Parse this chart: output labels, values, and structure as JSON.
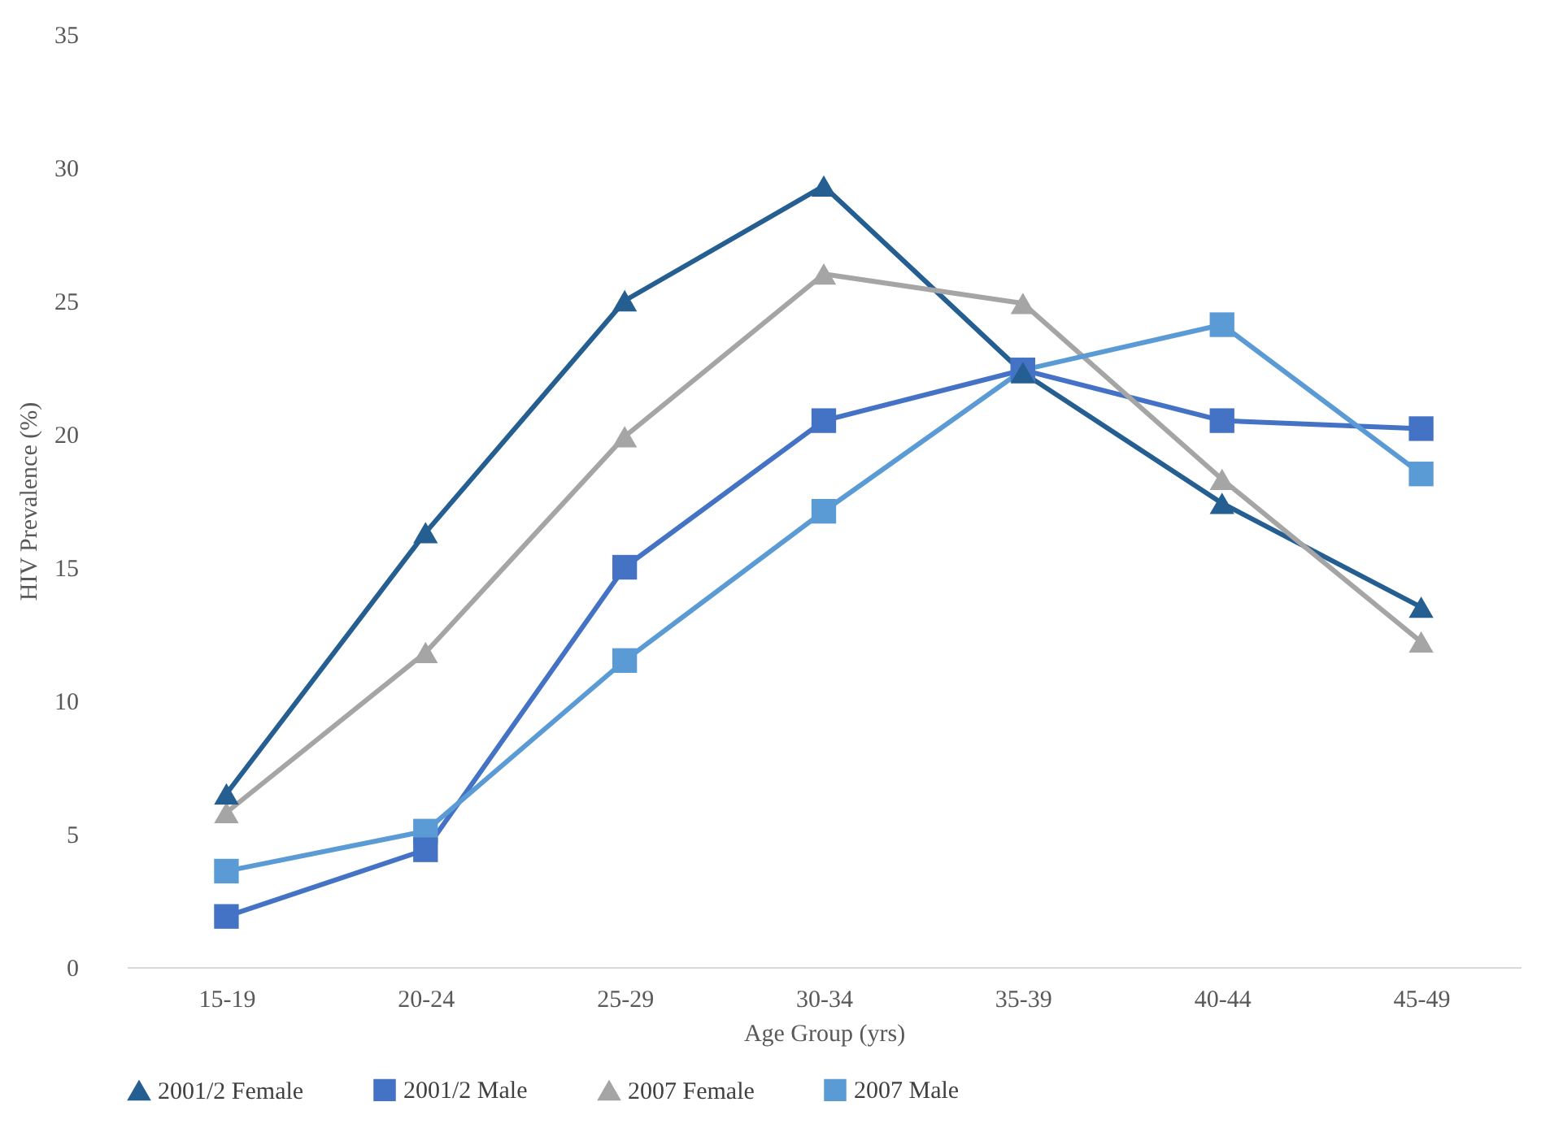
{
  "chart_data": {
    "type": "line",
    "xlabel": "Age Group (yrs)",
    "ylabel": "HIV Prevalence (%)",
    "categories": [
      "15-19",
      "20-24",
      "25-29",
      "30-34",
      "35-39",
      "40-44",
      "45-49"
    ],
    "ylim": [
      0,
      35
    ],
    "yticks": [
      0,
      5,
      10,
      15,
      20,
      25,
      30,
      35
    ],
    "grid": false,
    "legend": "bottom",
    "line_style": "solid",
    "series": [
      {
        "name": "2001/2 Female",
        "color": "#255e91",
        "marker": "triangle",
        "values": [
          6.5,
          16.3,
          25.0,
          29.3,
          22.3,
          17.4,
          13.5
        ]
      },
      {
        "name": "2001/2 Male",
        "color": "#4472c4",
        "marker": "square",
        "values": [
          1.9,
          4.4,
          15.0,
          20.5,
          22.4,
          20.5,
          20.2
        ]
      },
      {
        "name": "2007 Female",
        "color": "#a5a5a5",
        "marker": "triangle",
        "values": [
          5.8,
          11.8,
          19.9,
          26.0,
          24.9,
          18.3,
          12.2
        ]
      },
      {
        "name": "2007 Male",
        "color": "#5b9bd5",
        "marker": "square",
        "values": [
          3.6,
          5.1,
          11.5,
          17.1,
          22.4,
          24.1,
          18.5
        ]
      }
    ]
  }
}
